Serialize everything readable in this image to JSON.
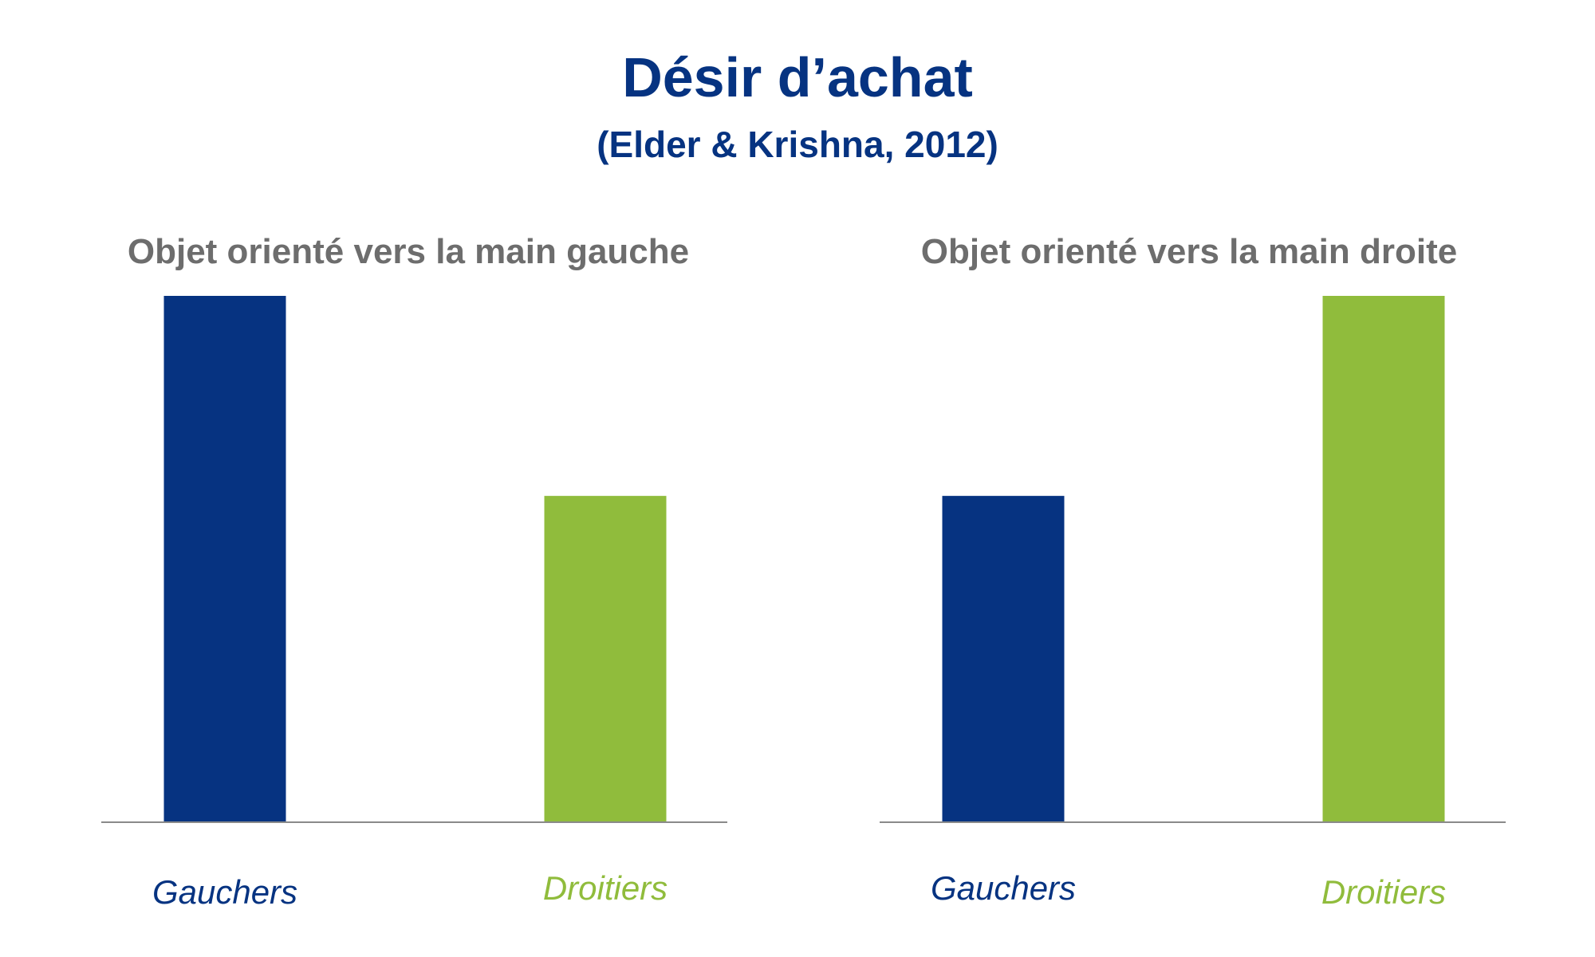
{
  "title": "Désir d’achat",
  "subtitle": "(Elder & Krishna, 2012)",
  "colors": {
    "title": "#063381",
    "panel_title": "#6d6d6d",
    "gauchers": "#063381",
    "droitiers": "#90bc3c",
    "axis": "#8a8a8a"
  },
  "chart_data": [
    {
      "type": "bar",
      "title": "Objet orienté vers la main gauche",
      "categories": [
        "Gauchers",
        "Droitiers"
      ],
      "values": [
        1.0,
        0.62
      ],
      "colors": [
        "#063381",
        "#90bc3c"
      ],
      "ylim": [
        0,
        1.0
      ],
      "grid": false,
      "xlabel": "",
      "ylabel": ""
    },
    {
      "type": "bar",
      "title": "Objet orienté vers la main droite",
      "categories": [
        "Gauchers",
        "Droitiers"
      ],
      "values": [
        0.62,
        1.0
      ],
      "colors": [
        "#063381",
        "#90bc3c"
      ],
      "ylim": [
        0,
        1.0
      ],
      "grid": false,
      "xlabel": "",
      "ylabel": ""
    }
  ]
}
